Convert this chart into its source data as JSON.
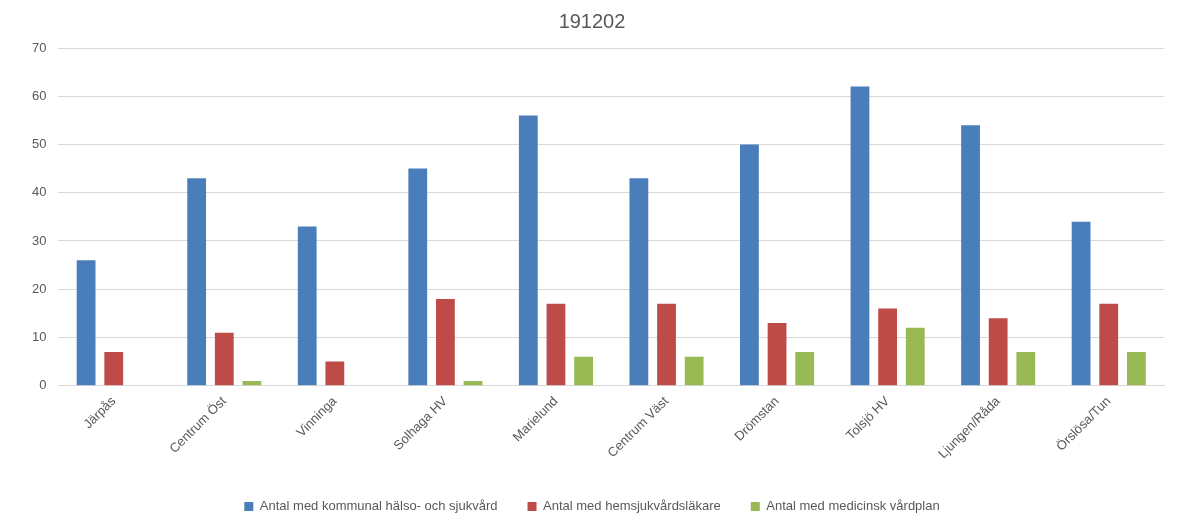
{
  "chart_data": {
    "type": "bar",
    "title": "191202",
    "categories": [
      "Järpås",
      "Centrum Öst",
      "Vinninga",
      "Solhaga HV",
      "Marielund",
      "Centrum Väst",
      "Drömstan",
      "Tolsjö HV",
      "Ljungen/Råda",
      "Örslösa/Tun"
    ],
    "series": [
      {
        "name": "Antal med kommunal hälso- och sjukvård",
        "color": "#4a7ebb",
        "values": [
          26,
          43,
          33,
          45,
          56,
          43,
          50,
          62,
          54,
          34
        ]
      },
      {
        "name": "Antal med hemsjukvårdsläkare",
        "color": "#be4b48",
        "values": [
          7,
          11,
          5,
          18,
          17,
          17,
          13,
          16,
          14,
          17
        ]
      },
      {
        "name": "Antal med medicinsk vårdplan",
        "color": "#98b954",
        "values": [
          0,
          1,
          0,
          1,
          6,
          6,
          7,
          12,
          7,
          7
        ]
      }
    ],
    "ylim": [
      0,
      70
    ],
    "yticks": [
      0,
      10,
      20,
      30,
      40,
      50,
      60,
      70
    ],
    "grid": "y",
    "legend": "bottom"
  }
}
